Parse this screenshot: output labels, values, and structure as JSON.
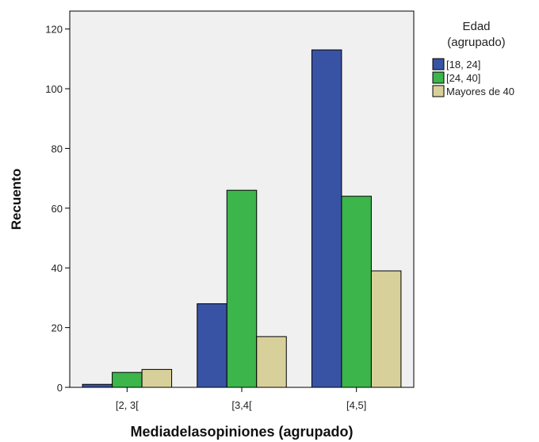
{
  "chart_data": {
    "type": "bar",
    "categories": [
      "[2, 3[",
      "[3,4[",
      "[4,5]"
    ],
    "series": [
      {
        "name": "[18, 24]",
        "values": [
          1,
          28,
          113
        ],
        "color": "#3953a4"
      },
      {
        "name": "[24, 40]",
        "values": [
          5,
          66,
          64
        ],
        "color": "#3cb54a"
      },
      {
        "name": "Mayores de 40",
        "values": [
          6,
          17,
          39
        ],
        "color": "#d8d09a"
      }
    ],
    "xlabel": "Mediadelasopiniones (agrupado)",
    "ylabel": "Recuento",
    "ylim": [
      0,
      126
    ],
    "yticks": [
      0,
      20,
      40,
      60,
      80,
      100,
      120
    ],
    "grid": false,
    "legend": {
      "title_line1": "Edad",
      "title_line2": "(agrupado)",
      "placement": "right"
    },
    "plot_background": "#f0f0f0"
  }
}
